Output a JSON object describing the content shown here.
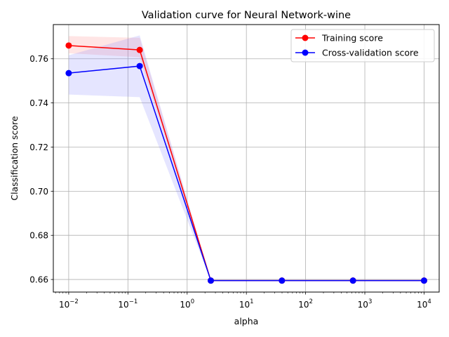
{
  "chart_data": {
    "type": "line",
    "title": "Validation curve for Neural Network-wine",
    "xlabel": "alpha",
    "ylabel": "Classification score",
    "xscale": "log",
    "xlim": [
      0.0055,
      18000
    ],
    "ylim": [
      0.6543,
      0.7755
    ],
    "grid": true,
    "legend_position": "top-right",
    "x_ticks": [
      {
        "value": 0.01,
        "base": "10",
        "exp": "−2"
      },
      {
        "value": 0.1,
        "base": "10",
        "exp": "−1"
      },
      {
        "value": 1,
        "base": "10",
        "exp": "0"
      },
      {
        "value": 10,
        "base": "10",
        "exp": "1"
      },
      {
        "value": 100,
        "base": "10",
        "exp": "2"
      },
      {
        "value": 1000,
        "base": "10",
        "exp": "3"
      },
      {
        "value": 10000,
        "base": "10",
        "exp": "4"
      }
    ],
    "y_ticks": [
      {
        "value": 0.66,
        "label": "0.66"
      },
      {
        "value": 0.68,
        "label": "0.68"
      },
      {
        "value": 0.7,
        "label": "0.70"
      },
      {
        "value": 0.72,
        "label": "0.72"
      },
      {
        "value": 0.74,
        "label": "0.74"
      },
      {
        "value": 0.76,
        "label": "0.76"
      }
    ],
    "x": [
      0.01,
      0.158,
      2.51,
      39.8,
      631,
      10000
    ],
    "series": [
      {
        "name": "Training score",
        "color": "#ff0000",
        "band_color": "#ff7f7f",
        "values": [
          0.766,
          0.764,
          0.6595,
          0.6595,
          0.6595,
          0.6595
        ],
        "band_lower": [
          0.7625,
          0.7607,
          0.6595,
          0.6595,
          0.6595,
          0.6595
        ],
        "band_upper": [
          0.7703,
          0.7695,
          0.6595,
          0.6595,
          0.6595,
          0.6595
        ]
      },
      {
        "name": "Cross-validation score",
        "color": "#0000ff",
        "band_color": "#7f7fff",
        "values": [
          0.7535,
          0.7567,
          0.6595,
          0.6595,
          0.6595,
          0.6595
        ],
        "band_lower": [
          0.7438,
          0.7426,
          0.6595,
          0.6595,
          0.6595,
          0.6595
        ],
        "band_upper": [
          0.7616,
          0.7706,
          0.6595,
          0.6595,
          0.6595,
          0.6595
        ]
      }
    ]
  }
}
